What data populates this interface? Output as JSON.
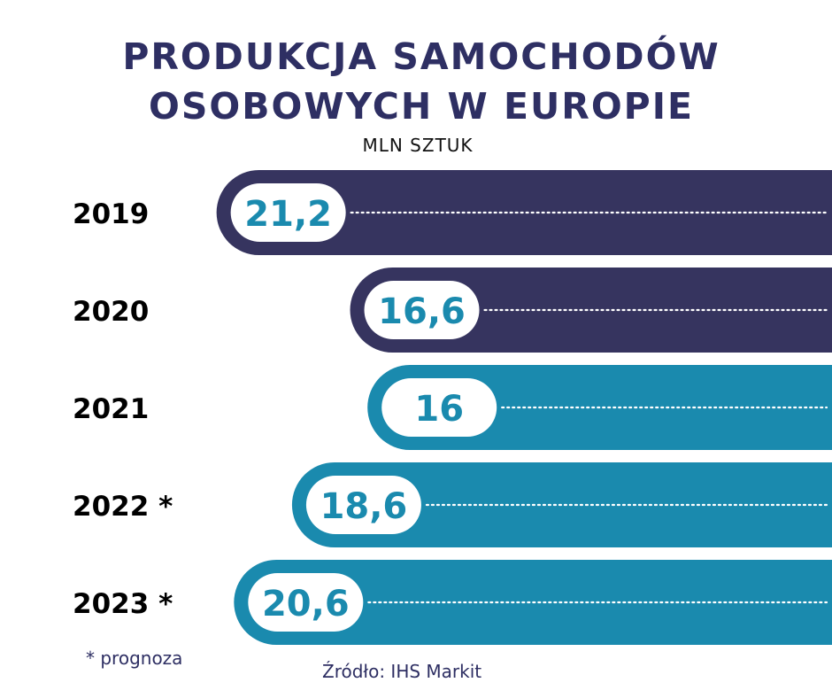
{
  "chart_data": {
    "type": "bar",
    "orientation": "horizontal",
    "title_lines": [
      "PRODUKCJA SAMOCHODÓW",
      "OSOBOWYCH W EUROPIE"
    ],
    "unit": "MLN SZTUK",
    "categories": [
      "2019",
      "2020",
      "2021",
      "2022 *",
      "2023 *"
    ],
    "values": [
      21.2,
      16.6,
      16,
      18.6,
      20.6
    ],
    "value_labels": [
      "21,2",
      "16,6",
      "16",
      "18,6",
      "20,6"
    ],
    "bar_colors": [
      "#36345f",
      "#36345f",
      "#1a8aae",
      "#1a8aae",
      "#1a8aae"
    ],
    "label_color": "#1a8aae",
    "footnote": "* prognoza",
    "source": "Źródło: IHS Markit"
  }
}
